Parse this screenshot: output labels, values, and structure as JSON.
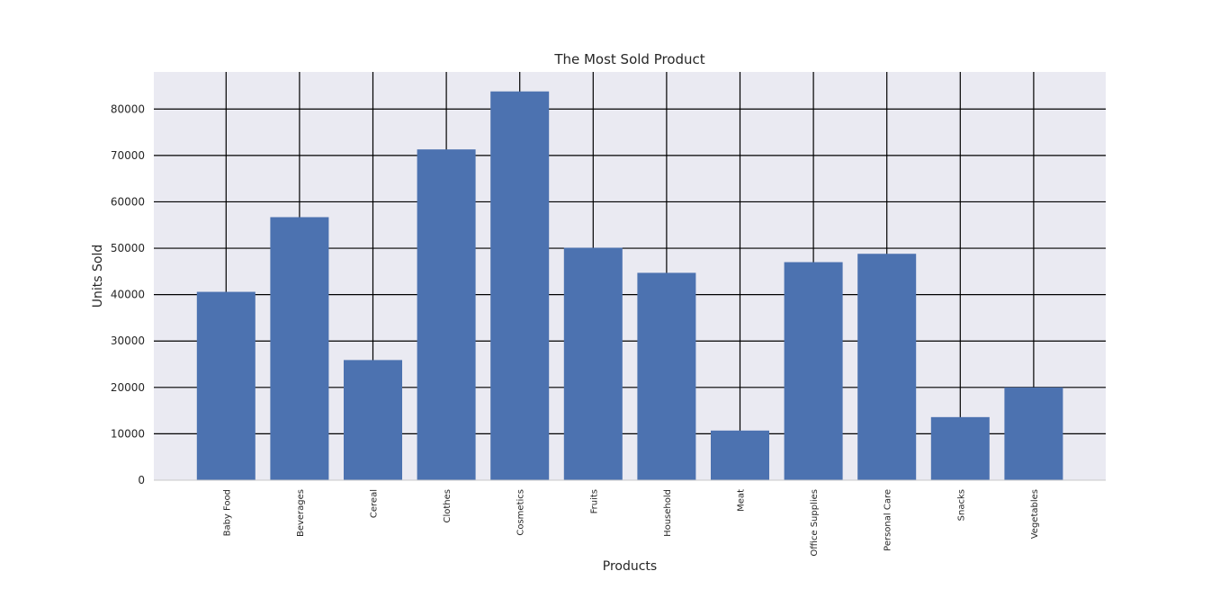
{
  "chart_data": {
    "type": "bar",
    "title": "The Most Sold Product",
    "xlabel": "Products",
    "ylabel": "Units Sold",
    "categories": [
      "Baby Food",
      "Beverages",
      "Cereal",
      "Clothes",
      "Cosmetics",
      "Fruits",
      "Household",
      "Meat",
      "Office Supplies",
      "Personal Care",
      "Snacks",
      "Vegetables"
    ],
    "values": [
      40600,
      56700,
      25900,
      71300,
      83800,
      50100,
      44700,
      10700,
      47000,
      48800,
      13600,
      20000
    ],
    "ylim": [
      0,
      88000
    ],
    "yticks": [
      0,
      10000,
      20000,
      30000,
      40000,
      50000,
      60000,
      70000,
      80000
    ],
    "grid": true,
    "colors": {
      "bar": "#4c72b0",
      "plot_background": "#eaeaf2",
      "grid": "#000000"
    }
  }
}
